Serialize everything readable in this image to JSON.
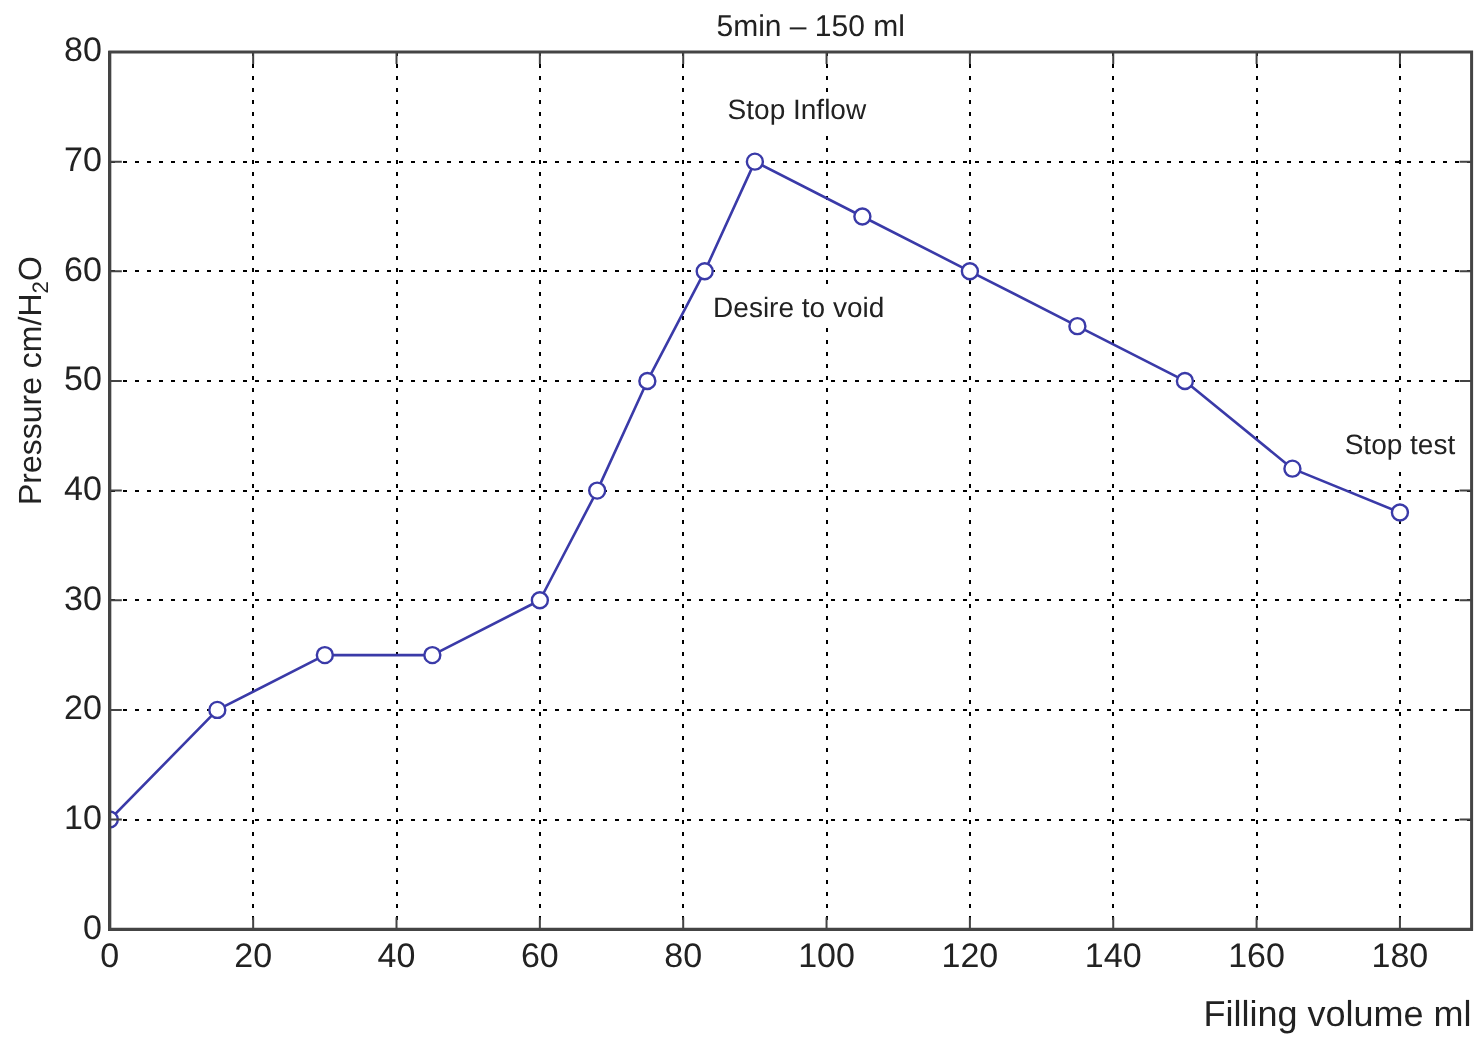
{
  "chart_data": {
    "type": "line",
    "title": "5min – 150 ml",
    "xlabel": "Filling volume ml",
    "ylabel": "Pressure cm/H$_{2}$O",
    "x": [
      0,
      15,
      30,
      45,
      60,
      68,
      75,
      83,
      90,
      105,
      120,
      135,
      150,
      165,
      180
    ],
    "series": [
      {
        "color": "#3a3aa8",
        "values": [
          10,
          20,
          25,
          25,
          30,
          40,
          50,
          60,
          70,
          65,
          60,
          55,
          50,
          42,
          38
        ]
      }
    ],
    "xlim": [
      0,
      190
    ],
    "xticks": [
      0,
      20,
      40,
      60,
      80,
      100,
      120,
      140,
      160,
      180
    ],
    "ylim": [
      0,
      80
    ],
    "yticks": [
      0,
      10,
      20,
      30,
      40,
      50,
      60,
      70,
      80
    ],
    "grid": true,
    "legend": false,
    "marker": "circle",
    "line_style": "solid",
    "annotations": [
      {
        "text": "Stop Inflow",
        "x": 90,
        "y": 70
      },
      {
        "text": "Desire to void",
        "x": 83,
        "y": 60
      },
      {
        "text": "Stop test",
        "x": 180,
        "y": 38
      }
    ]
  }
}
